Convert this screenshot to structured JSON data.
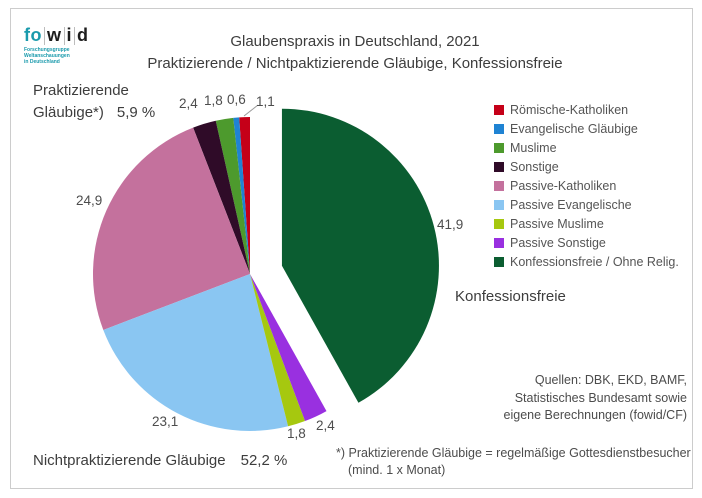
{
  "logo": {
    "brand_left": "fo",
    "brand_letters": [
      "w",
      "i",
      "d"
    ],
    "tagline": [
      "Forschungsgruppe",
      "Weltanschauungen",
      "in Deutschland"
    ]
  },
  "header": {
    "title": "Glaubenspraxis in Deutschland, 2021",
    "subtitle": "Praktizierende / Nichtpaktizierende Gläubige, Konfessionsfreie"
  },
  "annotations": {
    "praktizierende": {
      "line1": "Praktizierende",
      "line2": "Gläubige*)",
      "value": "5,9 %"
    },
    "nichtpraktizierende": {
      "label": "Nichtpraktizierende Gläubige",
      "value": "52,2 %"
    },
    "konfessionsfreie": "Konfessionsfreie",
    "sources": [
      "Quellen: DBK, EKD, BAMF,",
      "Statistisches Bundesamt sowie",
      "eigene Berechnungen (fowid/CF)"
    ],
    "footnote": [
      "*) Praktizierende Gläubige = regelmäßige Gottesdienstbesucher",
      "(mind. 1 x Monat)"
    ]
  },
  "chart_data": {
    "type": "pie",
    "title": "Glaubenspraxis in Deutschland, 2021",
    "subtitle": "Praktizierende / Nichtpaktizierende Gläubige, Konfessionsfreie",
    "unit": "%",
    "start_angle_deg": 0,
    "direction": "counterclockwise",
    "legend_position": "right",
    "segments": [
      {
        "label": "Römische-Katholiken",
        "value": 1.1,
        "display": "1,1",
        "color": "#c50018",
        "exploded": false
      },
      {
        "label": "Evangelische Gläubige",
        "value": 0.6,
        "display": "0,6",
        "color": "#1f83d3",
        "exploded": false
      },
      {
        "label": "Muslime",
        "value": 1.8,
        "display": "1,8",
        "color": "#4d9a2d",
        "exploded": false
      },
      {
        "label": "Sonstige",
        "value": 2.4,
        "display": "2,4",
        "color": "#2f0b28",
        "exploded": false
      },
      {
        "label": "Passive-Katholiken",
        "value": 24.9,
        "display": "24,9",
        "color": "#c4719d",
        "exploded": false
      },
      {
        "label": "Passive Evangelische",
        "value": 23.1,
        "display": "23,1",
        "color": "#8ac6f2",
        "exploded": false
      },
      {
        "label": "Passive Muslime",
        "value": 1.8,
        "display": "1,8",
        "color": "#a6c80f",
        "exploded": false
      },
      {
        "label": "Passive Sonstige",
        "value": 2.4,
        "display": "2,4",
        "color": "#9930e0",
        "exploded": false
      },
      {
        "label": "Konfessionsfreie / Ohne Relig.",
        "value": 41.9,
        "display": "41,9",
        "color": "#0b5d31",
        "exploded": true
      }
    ],
    "groups": [
      {
        "label": "Praktizierende Gläubige*)",
        "value_display": "5,9 %"
      },
      {
        "label": "Nichtpraktizierende Gläubige",
        "value_display": "52,2 %"
      },
      {
        "label": "Konfessionsfreie",
        "value_display": "41,9"
      }
    ]
  }
}
